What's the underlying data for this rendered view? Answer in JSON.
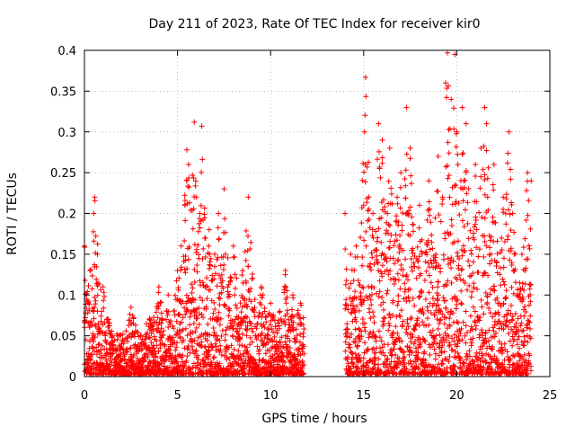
{
  "chart_data": {
    "type": "scatter",
    "title": "Day 211 of 2023, Rate Of TEC Index for receiver kir0",
    "xlabel": "GPS time / hours",
    "ylabel": "ROTI / TECUs",
    "xlim": [
      0,
      25
    ],
    "ylim": [
      0,
      0.4
    ],
    "xticks": [
      0,
      5,
      10,
      15,
      20,
      25
    ],
    "yticks": [
      0,
      0.05,
      0.1,
      0.15,
      0.2,
      0.25,
      0.3,
      0.35,
      0.4
    ],
    "xtick_labels": [
      "0",
      "5",
      "10",
      "15",
      "20",
      "25"
    ],
    "ytick_labels": [
      "0",
      "0.05",
      "0.1",
      "0.15",
      "0.2",
      "0.25",
      "0.3",
      "0.35",
      "0.4"
    ],
    "grid": true,
    "marker": "+",
    "color": "#ff0000",
    "x_gap": [
      11.8,
      14.0
    ],
    "series": [
      {
        "values": [
          [
            0.0,
            0.16
          ],
          [
            0.2,
            0.09
          ],
          [
            0.3,
            0.13
          ],
          [
            0.5,
            0.2
          ],
          [
            0.55,
            0.22
          ],
          [
            0.7,
            0.15
          ],
          [
            1.0,
            0.11
          ],
          [
            1.2,
            0.07
          ],
          [
            1.5,
            0.05
          ],
          [
            2.0,
            0.04
          ],
          [
            2.5,
            0.085
          ],
          [
            3.0,
            0.05
          ],
          [
            3.5,
            0.07
          ],
          [
            4.0,
            0.11
          ],
          [
            4.5,
            0.1
          ],
          [
            5.0,
            0.13
          ],
          [
            5.2,
            0.16
          ],
          [
            5.4,
            0.21
          ],
          [
            5.5,
            0.278
          ],
          [
            5.6,
            0.26
          ],
          [
            5.8,
            0.247
          ],
          [
            5.9,
            0.312
          ],
          [
            6.0,
            0.22
          ],
          [
            6.2,
            0.2
          ],
          [
            6.3,
            0.307
          ],
          [
            6.5,
            0.17
          ],
          [
            6.7,
            0.18
          ],
          [
            7.0,
            0.15
          ],
          [
            7.2,
            0.2
          ],
          [
            7.5,
            0.23
          ],
          [
            8.0,
            0.16
          ],
          [
            8.5,
            0.13
          ],
          [
            8.8,
            0.22
          ],
          [
            9.0,
            0.12
          ],
          [
            9.5,
            0.11
          ],
          [
            10.0,
            0.09
          ],
          [
            10.5,
            0.08
          ],
          [
            10.8,
            0.13
          ],
          [
            11.2,
            0.1
          ],
          [
            11.6,
            0.09
          ],
          [
            14.0,
            0.2
          ],
          [
            14.3,
            0.15
          ],
          [
            14.6,
            0.16
          ],
          [
            15.0,
            0.21
          ],
          [
            15.1,
            0.367
          ],
          [
            15.5,
            0.2
          ],
          [
            15.8,
            0.31
          ],
          [
            16.0,
            0.29
          ],
          [
            16.4,
            0.28
          ],
          [
            16.8,
            0.22
          ],
          [
            17.0,
            0.25
          ],
          [
            17.3,
            0.33
          ],
          [
            17.5,
            0.28
          ],
          [
            18.0,
            0.21
          ],
          [
            18.5,
            0.24
          ],
          [
            19.0,
            0.27
          ],
          [
            19.4,
            0.36
          ],
          [
            19.5,
            0.397
          ],
          [
            19.7,
            0.34
          ],
          [
            19.9,
            0.395
          ],
          [
            20.0,
            0.3
          ],
          [
            20.3,
            0.33
          ],
          [
            20.5,
            0.31
          ],
          [
            21.0,
            0.26
          ],
          [
            21.3,
            0.28
          ],
          [
            21.5,
            0.33
          ],
          [
            21.6,
            0.31
          ],
          [
            22.0,
            0.26
          ],
          [
            22.5,
            0.22
          ],
          [
            22.8,
            0.3
          ],
          [
            23.0,
            0.2
          ],
          [
            23.5,
            0.15
          ],
          [
            23.8,
            0.25
          ],
          [
            24.0,
            0.24
          ]
        ]
      }
    ]
  }
}
